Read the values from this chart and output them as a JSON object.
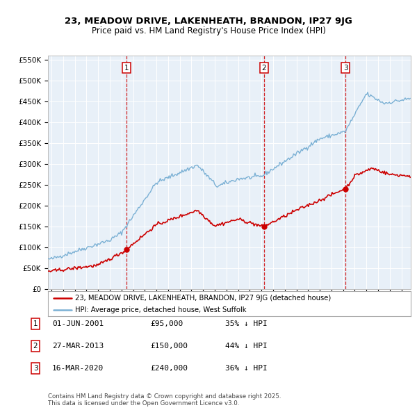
{
  "title": "23, MEADOW DRIVE, LAKENHEATH, BRANDON, IP27 9JG",
  "subtitle": "Price paid vs. HM Land Registry's House Price Index (HPI)",
  "hpi_label": "HPI: Average price, detached house, West Suffolk",
  "property_label": "23, MEADOW DRIVE, LAKENHEATH, BRANDON, IP27 9JG (detached house)",
  "footer": "Contains HM Land Registry data © Crown copyright and database right 2025.\nThis data is licensed under the Open Government Licence v3.0.",
  "sales": [
    {
      "num": 1,
      "date": "01-JUN-2001",
      "price": 95000,
      "pct": "35%",
      "x": 2001.42
    },
    {
      "num": 2,
      "date": "27-MAR-2013",
      "price": 150000,
      "pct": "44%",
      "x": 2013.23
    },
    {
      "num": 3,
      "date": "16-MAR-2020",
      "price": 240000,
      "pct": "36%",
      "x": 2020.21
    }
  ],
  "ylim": [
    0,
    560000
  ],
  "yticks": [
    0,
    50000,
    100000,
    150000,
    200000,
    250000,
    300000,
    350000,
    400000,
    450000,
    500000,
    550000
  ],
  "ytick_labels": [
    "£0",
    "£50K",
    "£100K",
    "£150K",
    "£200K",
    "£250K",
    "£300K",
    "£350K",
    "£400K",
    "£450K",
    "£500K",
    "£550K"
  ],
  "xlim": [
    1994.7,
    2025.8
  ],
  "red_color": "#cc0000",
  "blue_color": "#7ab0d4",
  "bg_color": "#ddeeff",
  "plot_bg": "#e8f0f8",
  "grid_color": "#c8d8e8"
}
